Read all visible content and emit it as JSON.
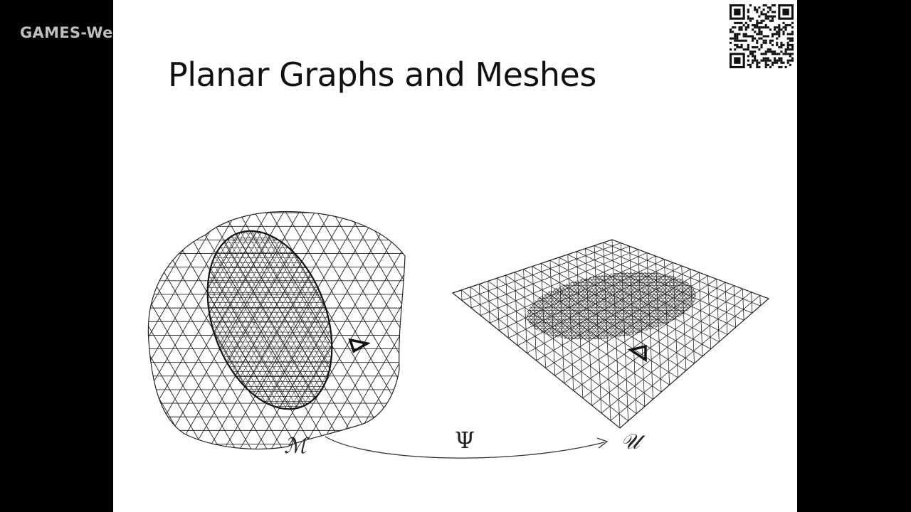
{
  "overlay": {
    "watermark_text": "GAMES-We"
  },
  "slide": {
    "title": "Planar Graphs and Meshes",
    "figure": {
      "source_label": "ℳ",
      "map_label": "Ψ",
      "target_label": "𝒰"
    }
  }
}
